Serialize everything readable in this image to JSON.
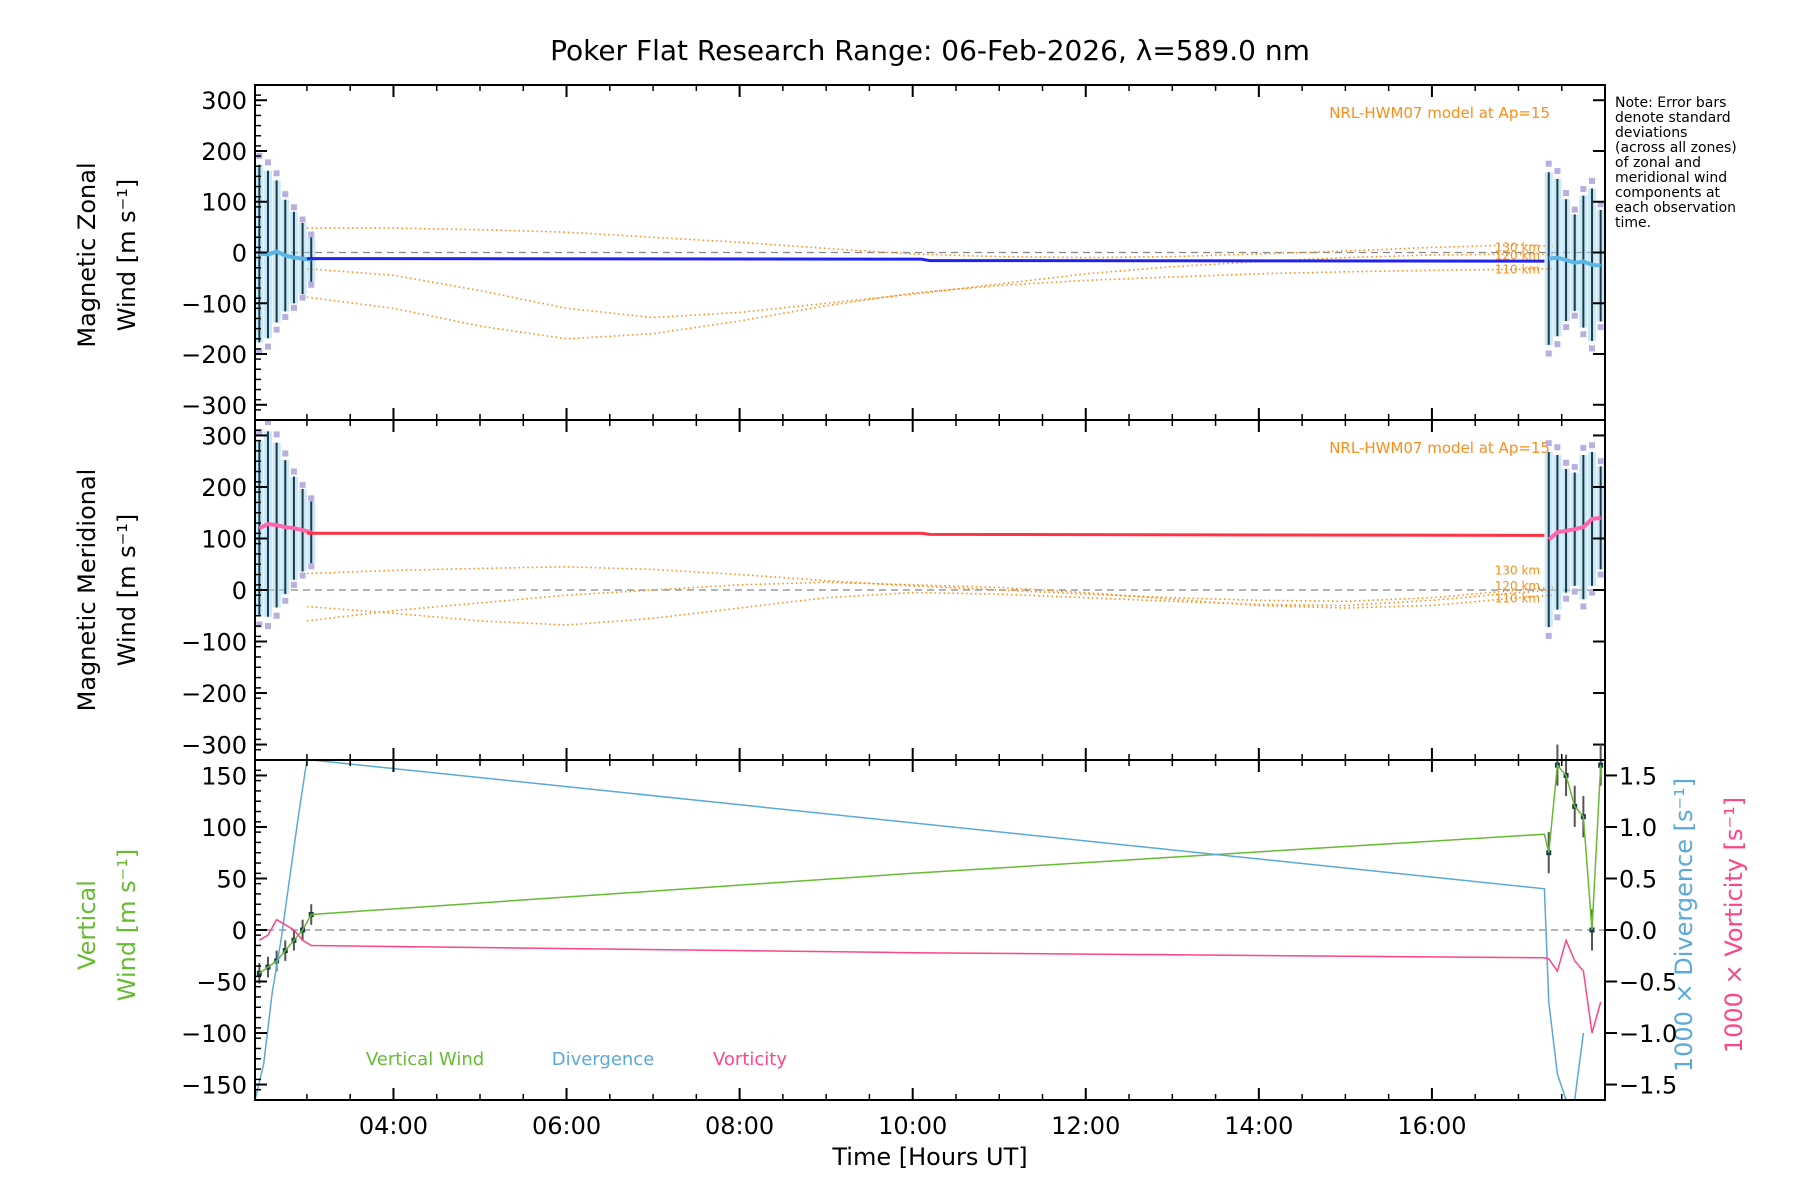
{
  "title": "Poker Flat Research Range: 06-Feb-2026, λ=589.0 nm",
  "note": {
    "lines": [
      "Note: Error bars",
      "denote standard",
      "deviations",
      "(across all zones)",
      "of zonal and",
      "meridional wind",
      "components at",
      "each observation",
      "time."
    ]
  },
  "x_axis": {
    "label": "Time [Hours UT]",
    "range": [
      2.4,
      18.0
    ],
    "ticks": [
      4,
      6,
      8,
      10,
      12,
      14,
      16
    ],
    "tick_labels": [
      "04:00",
      "06:00",
      "08:00",
      "10:00",
      "12:00",
      "14:00",
      "16:00"
    ]
  },
  "colors": {
    "axes": "#000000",
    "model": "#ff8c1a",
    "zonal": "#2222ee",
    "zonal_light": "#5bb6e6",
    "meridional": "#ff3344",
    "meridional_light": "#ff66aa",
    "errorbar": "#1a3a4a",
    "errorbar_fill": "#9ed6f0",
    "scatter": "#b8b0e0",
    "vertical": "#66bb33",
    "divergence": "#5aa9d8",
    "vorticity": "#ff4488",
    "zero_line": "#888888"
  },
  "panels": [
    {
      "id": "zonal",
      "ylabel_line1": "Magnetic Zonal",
      "ylabel_line2": "Wind [m s⁻¹]",
      "ylim": [
        -330,
        330
      ],
      "yticks": [
        -300,
        -200,
        -100,
        0,
        100,
        200,
        300
      ],
      "ytick_labels": [
        "−300",
        "−200",
        "−100",
        "0",
        "100",
        "200",
        "300"
      ],
      "model_label": "NRL-HWM07 model at Ap=15",
      "altitude_labels": [
        "130 km",
        "120 km",
        "110 km"
      ],
      "altitude_values": [
        12,
        -4,
        -32
      ],
      "model_curves": [
        {
          "name": "130 km",
          "x": [
            3.0,
            4.0,
            5.0,
            6.0,
            7.0,
            8.0,
            9.0,
            10.0,
            11.0,
            12.0,
            13.0,
            14.0,
            15.0,
            16.0,
            17.0,
            17.4
          ],
          "y": [
            48,
            48,
            45,
            40,
            30,
            20,
            8,
            -3,
            -8,
            -10,
            -8,
            -3,
            3,
            10,
            15,
            12
          ]
        },
        {
          "name": "120 km",
          "x": [
            3.0,
            4.0,
            5.0,
            6.0,
            7.0,
            8.0,
            9.0,
            10.0,
            11.0,
            12.0,
            13.0,
            14.0,
            15.0,
            16.0,
            17.0,
            17.4
          ],
          "y": [
            -32,
            -45,
            -75,
            -110,
            -128,
            -118,
            -100,
            -82,
            -62,
            -42,
            -28,
            -18,
            -10,
            -5,
            -3,
            -4
          ]
        },
        {
          "name": "110 km",
          "x": [
            3.0,
            4.0,
            5.0,
            6.0,
            7.0,
            8.0,
            9.0,
            10.0,
            11.0,
            12.0,
            13.0,
            14.0,
            15.0,
            16.0,
            17.0,
            17.4
          ],
          "y": [
            -88,
            -110,
            -145,
            -170,
            -160,
            -135,
            -105,
            -80,
            -65,
            -55,
            -48,
            -42,
            -38,
            -35,
            -33,
            -32
          ]
        }
      ],
      "mean_series": {
        "x": [
          3.0,
          10.1,
          10.2,
          17.3
        ],
        "y": [
          -12,
          -13,
          -16,
          -17
        ]
      },
      "obs_start": {
        "x": [
          2.45,
          2.55,
          2.65,
          2.75,
          2.85,
          2.95,
          3.05
        ],
        "y": [
          -2,
          -4,
          2,
          -6,
          -10,
          -12,
          -14
        ],
        "err": [
          175,
          165,
          140,
          110,
          90,
          70,
          45
        ]
      },
      "obs_end": {
        "x": [
          17.35,
          17.45,
          17.55,
          17.65,
          17.75,
          17.85,
          17.95
        ],
        "y": [
          -12,
          -10,
          -15,
          -20,
          -18,
          -24,
          -26
        ],
        "err": [
          170,
          155,
          120,
          95,
          130,
          150,
          110
        ]
      }
    },
    {
      "id": "meridional",
      "ylabel_line1": "Magnetic Meridional",
      "ylabel_line2": "Wind [m s⁻¹]",
      "ylim": [
        -330,
        330
      ],
      "yticks": [
        -300,
        -200,
        -100,
        0,
        100,
        200,
        300
      ],
      "ytick_labels": [
        "−300",
        "−200",
        "−100",
        "0",
        "100",
        "200",
        "300"
      ],
      "model_label": "NRL-HWM07 model at Ap=15",
      "altitude_labels": [
        "130 km",
        "120 km",
        "110 km"
      ],
      "altitude_values": [
        40,
        10,
        -15
      ],
      "model_curves": [
        {
          "name": "130 km",
          "x": [
            3.0,
            4.0,
            5.0,
            6.0,
            7.0,
            8.0,
            9.0,
            10.0,
            11.0,
            12.0,
            13.0,
            14.0,
            15.0,
            16.0,
            17.0,
            17.4
          ],
          "y": [
            32,
            38,
            42,
            45,
            40,
            30,
            18,
            8,
            0,
            -8,
            -15,
            -20,
            -22,
            -15,
            0,
            5
          ]
        },
        {
          "name": "120 km",
          "x": [
            3.0,
            4.0,
            5.0,
            6.0,
            7.0,
            8.0,
            9.0,
            10.0,
            11.0,
            12.0,
            13.0,
            14.0,
            15.0,
            16.0,
            17.0,
            17.4
          ],
          "y": [
            -32,
            -45,
            -60,
            -68,
            -55,
            -35,
            -15,
            -5,
            -8,
            -15,
            -22,
            -28,
            -30,
            -20,
            -5,
            0
          ]
        },
        {
          "name": "110 km",
          "x": [
            3.0,
            4.0,
            5.0,
            6.0,
            7.0,
            8.0,
            9.0,
            10.0,
            11.0,
            12.0,
            13.0,
            14.0,
            15.0,
            16.0,
            17.0,
            17.4
          ],
          "y": [
            -60,
            -40,
            -25,
            -10,
            0,
            10,
            15,
            10,
            5,
            -5,
            -18,
            -30,
            -35,
            -30,
            -15,
            -10
          ]
        }
      ],
      "mean_series": {
        "x": [
          3.0,
          10.1,
          10.2,
          17.3
        ],
        "y": [
          110,
          110,
          108,
          106
        ]
      },
      "obs_start": {
        "x": [
          2.45,
          2.55,
          2.65,
          2.75,
          2.85,
          2.95,
          3.05
        ],
        "y": [
          120,
          128,
          126,
          122,
          120,
          116,
          112
        ],
        "err": [
          170,
          180,
          160,
          130,
          100,
          80,
          60
        ]
      },
      "obs_end": {
        "x": [
          17.35,
          17.45,
          17.55,
          17.65,
          17.75,
          17.85,
          17.95
        ],
        "y": [
          98,
          112,
          115,
          118,
          122,
          138,
          140
        ],
        "err": [
          170,
          150,
          120,
          110,
          140,
          130,
          100
        ]
      }
    },
    {
      "id": "vertical",
      "ylabel_line1": "Vertical",
      "ylabel_line2": "Wind [m s⁻¹]",
      "ylim": [
        -165,
        165
      ],
      "yticks": [
        -150,
        -100,
        -50,
        0,
        50,
        100,
        150
      ],
      "ytick_labels": [
        "−150",
        "−100",
        "−50",
        "0",
        "50",
        "100",
        "150"
      ],
      "y2label": "1000 × Divergence [s⁻¹]",
      "y3label": "1000 × Vorticity [s⁻¹]",
      "y2lim": [
        -1.65,
        1.65
      ],
      "y2ticks": [
        -1.5,
        -1.0,
        -0.5,
        0.0,
        0.5,
        1.0,
        1.5
      ],
      "y2tick_labels": [
        "−1.5",
        "−1.0",
        "−0.5",
        "0.0",
        "0.5",
        "1.0",
        "1.5"
      ],
      "legend": [
        "Vertical Wind",
        "Divergence",
        "Vorticity"
      ],
      "vertical_wind": {
        "x": [
          2.45,
          2.55,
          2.65,
          2.75,
          2.85,
          2.95,
          3.05,
          10.0,
          17.3,
          17.35,
          17.45,
          17.55,
          17.65,
          17.75,
          17.85,
          17.95
        ],
        "y": [
          -42,
          -36,
          -30,
          -20,
          -10,
          0,
          15,
          55,
          93,
          75,
          160,
          150,
          120,
          110,
          0,
          160
        ],
        "err": [
          10,
          10,
          10,
          10,
          10,
          10,
          10,
          0,
          0,
          20,
          20,
          20,
          20,
          20,
          20,
          20
        ]
      },
      "divergence": {
        "x": [
          2.4,
          2.5,
          2.6,
          2.7,
          2.8,
          2.9,
          3.0,
          3.05,
          17.3,
          17.35,
          17.45,
          17.55,
          17.65,
          17.75
        ],
        "y": [
          -1.65,
          -1.3,
          -0.6,
          -0.1,
          0.5,
          1.1,
          1.65,
          1.65,
          0.4,
          -0.7,
          -1.4,
          -1.65,
          -1.65,
          -1.0
        ]
      },
      "vorticity": {
        "x": [
          2.45,
          2.55,
          2.65,
          2.75,
          2.85,
          2.95,
          3.05,
          10.0,
          17.3,
          17.35,
          17.45,
          17.55,
          17.65,
          17.75,
          17.85,
          17.95
        ],
        "y": [
          -0.1,
          -0.05,
          0.1,
          0.05,
          0.0,
          -0.1,
          -0.15,
          -0.22,
          -0.27,
          -0.28,
          -0.4,
          -0.1,
          -0.3,
          -0.4,
          -1.0,
          -0.7
        ]
      }
    }
  ]
}
